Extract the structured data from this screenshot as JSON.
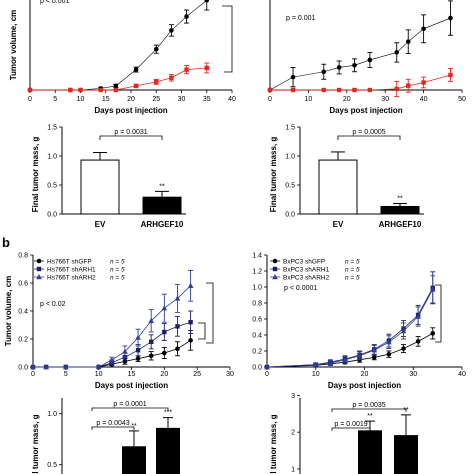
{
  "figure": {
    "panel_label_b": "b"
  },
  "chart_data": [
    {
      "id": "a1",
      "type": "line",
      "xlabel": "Days post injection",
      "ylabel": "Tumor volume, cm",
      "xlim": [
        0,
        40
      ],
      "xticks": [
        0,
        5,
        10,
        15,
        20,
        25,
        30,
        35,
        40
      ],
      "ylim": [
        0,
        1.25
      ],
      "annotation": "p < 0.001",
      "series": [
        {
          "color": "#000000",
          "marker": "circle",
          "x": [
            0,
            8,
            10,
            14,
            17,
            21,
            25,
            28,
            31,
            35
          ],
          "y": [
            0,
            0,
            0,
            0.02,
            0.05,
            0.25,
            0.5,
            0.73,
            0.9,
            1.1
          ],
          "err": [
            0,
            0,
            0,
            0.01,
            0.02,
            0.03,
            0.05,
            0.07,
            0.08,
            0.12
          ]
        },
        {
          "color": "#e8261d",
          "marker": "square",
          "x": [
            0,
            8,
            10,
            14,
            17,
            21,
            25,
            28,
            31,
            35
          ],
          "y": [
            0,
            0,
            0,
            0,
            0,
            0.05,
            0.1,
            0.15,
            0.25,
            0.27
          ],
          "err": [
            0,
            0,
            0,
            0,
            0,
            0.02,
            0.03,
            0.04,
            0.05,
            0.06
          ]
        }
      ]
    },
    {
      "id": "a2",
      "type": "line",
      "xlabel": "Days post injection",
      "ylabel": "",
      "xlim": [
        0,
        50
      ],
      "xticks": [
        0,
        10,
        20,
        30,
        40,
        50
      ],
      "ylim": [
        0,
        0.95
      ],
      "annotation": "p = 0.001",
      "series": [
        {
          "color": "#000000",
          "marker": "circle",
          "x": [
            0,
            6,
            14,
            18,
            22,
            26,
            33,
            36,
            40,
            47
          ],
          "y": [
            0,
            0.12,
            0.17,
            0.21,
            0.23,
            0.28,
            0.35,
            0.45,
            0.57,
            0.67
          ],
          "err": [
            0,
            0.09,
            0.07,
            0.06,
            0.06,
            0.07,
            0.09,
            0.11,
            0.13,
            0.16
          ]
        },
        {
          "color": "#e8261d",
          "marker": "square",
          "x": [
            0,
            6,
            14,
            18,
            22,
            26,
            33,
            36,
            40,
            47
          ],
          "y": [
            0,
            0,
            0,
            0,
            0,
            0,
            0.01,
            0.04,
            0.07,
            0.14
          ],
          "err": [
            0,
            0,
            0,
            0,
            0,
            0,
            0.07,
            0.06,
            0.05,
            0.06
          ]
        }
      ]
    },
    {
      "id": "a3",
      "type": "bar",
      "ylabel": "Final tumor mass, g",
      "categories": [
        "EV",
        "ARHGEF10"
      ],
      "values": [
        0.93,
        0.29
      ],
      "err": [
        0.13,
        0.1
      ],
      "colors": [
        "#ffffff",
        "#000000"
      ],
      "ylim": [
        0,
        1.5
      ],
      "yticks": [
        "0.0",
        "0.5",
        "1.0",
        "1.5"
      ],
      "pvalue": "p = 0.0031",
      "stars": "**"
    },
    {
      "id": "a4",
      "type": "bar",
      "ylabel": "Final tumor mass, g",
      "categories": [
        "EV",
        "ARHGEF10"
      ],
      "values": [
        0.93,
        0.13
      ],
      "err": [
        0.14,
        0.05
      ],
      "colors": [
        "#ffffff",
        "#000000"
      ],
      "ylim": [
        0,
        1.5
      ],
      "yticks": [
        "0.0",
        "0.5",
        "1.0",
        "1.5"
      ],
      "pvalue": "p = 0.0005",
      "stars": "**"
    },
    {
      "id": "b1",
      "type": "line",
      "xlabel": "Days post injection",
      "ylabel": "Tumor volume, cm",
      "xlim": [
        0,
        30
      ],
      "xticks": [
        0,
        5,
        10,
        15,
        20,
        25,
        30
      ],
      "ylim": [
        0,
        0.8
      ],
      "yticks": [
        "0.0",
        "0.2",
        "0.4",
        "0.6",
        "0.8"
      ],
      "annotation": "p < 0.02",
      "series": [
        {
          "name": "Hs766T shGFP",
          "n": "n = 5",
          "color": "#000000",
          "marker": "circle",
          "x": [
            0,
            2,
            5,
            10,
            12,
            14,
            16,
            18,
            20,
            22,
            24
          ],
          "y": [
            0,
            0,
            0,
            0,
            0.02,
            0.04,
            0.06,
            0.08,
            0.1,
            0.13,
            0.19
          ],
          "err": [
            0,
            0,
            0,
            0,
            0.01,
            0.02,
            0.02,
            0.03,
            0.04,
            0.05,
            0.07
          ]
        },
        {
          "name": "Hs766T shARH1",
          "n": "n = 5",
          "color": "#1a1f6b",
          "marker": "square",
          "x": [
            0,
            2,
            5,
            10,
            12,
            14,
            16,
            18,
            20,
            22,
            24
          ],
          "y": [
            0,
            0,
            0,
            0,
            0.03,
            0.07,
            0.12,
            0.18,
            0.25,
            0.29,
            0.32
          ],
          "err": [
            0,
            0,
            0,
            0,
            0.02,
            0.03,
            0.04,
            0.05,
            0.06,
            0.07,
            0.08
          ]
        },
        {
          "name": "Hs766T shARH2",
          "n": "n = 5",
          "color": "#2e3f9a",
          "marker": "triangle",
          "x": [
            0,
            2,
            5,
            10,
            12,
            14,
            16,
            18,
            20,
            22,
            24
          ],
          "y": [
            0,
            0,
            0,
            0,
            0.05,
            0.11,
            0.21,
            0.33,
            0.42,
            0.49,
            0.58
          ],
          "err": [
            0,
            0,
            0,
            0,
            0.02,
            0.04,
            0.06,
            0.08,
            0.1,
            0.1,
            0.11
          ]
        }
      ]
    },
    {
      "id": "b2",
      "type": "line",
      "xlabel": "Days post injection",
      "ylabel": "",
      "xlim": [
        0,
        40
      ],
      "xticks": [
        0,
        10,
        20,
        30,
        40
      ],
      "ylim": [
        0,
        1.4
      ],
      "yticks": [
        "0.0",
        "0.2",
        "0.4",
        "0.6",
        "0.8",
        "1.0",
        "1.2",
        "1.4"
      ],
      "annotation": "p < 0.0001",
      "series": [
        {
          "name": "BxPC3 shGFP",
          "n": "n = 5",
          "color": "#000000",
          "marker": "circle",
          "x": [
            0,
            10,
            13,
            16,
            19,
            22,
            25,
            28,
            31,
            34
          ],
          "y": [
            0,
            0.02,
            0.04,
            0.06,
            0.09,
            0.12,
            0.16,
            0.23,
            0.32,
            0.42
          ],
          "err": [
            0,
            0.01,
            0.02,
            0.02,
            0.03,
            0.03,
            0.04,
            0.05,
            0.06,
            0.07
          ]
        },
        {
          "name": "BxPC3 shARH1",
          "n": "n = 5",
          "color": "#1a1f6b",
          "marker": "square",
          "x": [
            0,
            10,
            13,
            16,
            19,
            22,
            25,
            28,
            31,
            34
          ],
          "y": [
            0,
            0.03,
            0.06,
            0.1,
            0.15,
            0.22,
            0.33,
            0.48,
            0.65,
            0.99
          ],
          "err": [
            0,
            0.02,
            0.03,
            0.04,
            0.05,
            0.06,
            0.08,
            0.1,
            0.12,
            0.2
          ]
        },
        {
          "name": "BxPC3 shARH2",
          "n": "n = 5",
          "color": "#2e3f9a",
          "marker": "triangle",
          "x": [
            0,
            10,
            13,
            16,
            19,
            22,
            25,
            28,
            31,
            34
          ],
          "y": [
            0,
            0.03,
            0.05,
            0.09,
            0.14,
            0.21,
            0.31,
            0.45,
            0.63,
            0.97
          ],
          "err": [
            0,
            0.02,
            0.03,
            0.04,
            0.05,
            0.06,
            0.08,
            0.1,
            0.12,
            0.17
          ]
        }
      ]
    },
    {
      "id": "b3",
      "type": "bar",
      "ylabel": "l tumor mass, g",
      "ylim": [
        0.35,
        1.25
      ],
      "yticks": [
        "0.5",
        "1.0"
      ],
      "values": [
        0.68,
        0.86
      ],
      "err": [
        0.15,
        0.1
      ],
      "stars": [
        "**",
        "***"
      ],
      "pvalues": [
        "p = 0.0043",
        "p = 0.0001"
      ]
    },
    {
      "id": "b4",
      "type": "bar",
      "ylabel": "l tumor mass, g",
      "ylim": [
        0.7,
        3.2
      ],
      "yticks": [
        "1",
        "2",
        "3"
      ],
      "values": [
        2.05,
        1.92
      ],
      "err": [
        0.25,
        0.55
      ],
      "stars": [
        "**",
        "**"
      ],
      "pvalues": [
        "p = 0.0019",
        "p = 0.0035"
      ]
    }
  ]
}
